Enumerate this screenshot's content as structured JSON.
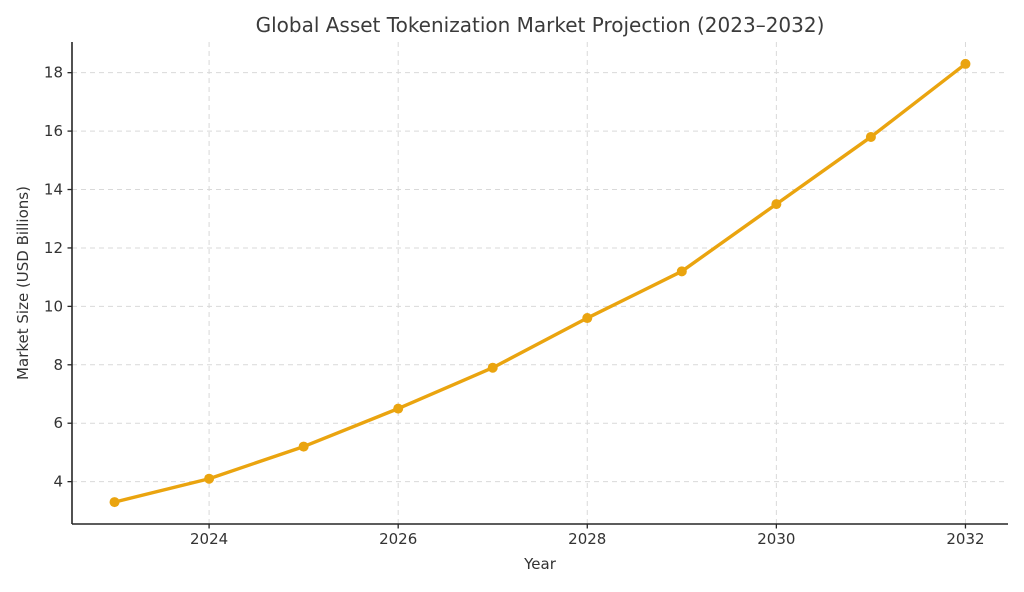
{
  "chart_data": {
    "type": "line",
    "title": "Global Asset Tokenization Market Projection (2023–2032)",
    "xlabel": "Year",
    "ylabel": "Market Size (USD Billions)",
    "x": [
      2023,
      2024,
      2025,
      2026,
      2027,
      2028,
      2029,
      2030,
      2031,
      2032
    ],
    "series": [
      {
        "name": "Market Size (USD Billions)",
        "values": [
          3.3,
          4.1,
          5.2,
          6.5,
          7.9,
          9.6,
          11.2,
          13.5,
          15.8,
          18.3
        ]
      }
    ],
    "xlim": [
      2022.55,
      2032.45
    ],
    "ylim": [
      2.55,
      19.05
    ],
    "xticks": [
      2024,
      2026,
      2028,
      2030,
      2032
    ],
    "yticks": [
      4,
      6,
      8,
      10,
      12,
      14,
      16,
      18
    ],
    "grid": true,
    "legend": "none",
    "line_color": "#EAA40F",
    "marker_color": "#EAA40F",
    "grid_color": "#d9d9d9",
    "spine_color": "#262626",
    "text_color": "#333333",
    "title_color": "#3b3b3b"
  }
}
